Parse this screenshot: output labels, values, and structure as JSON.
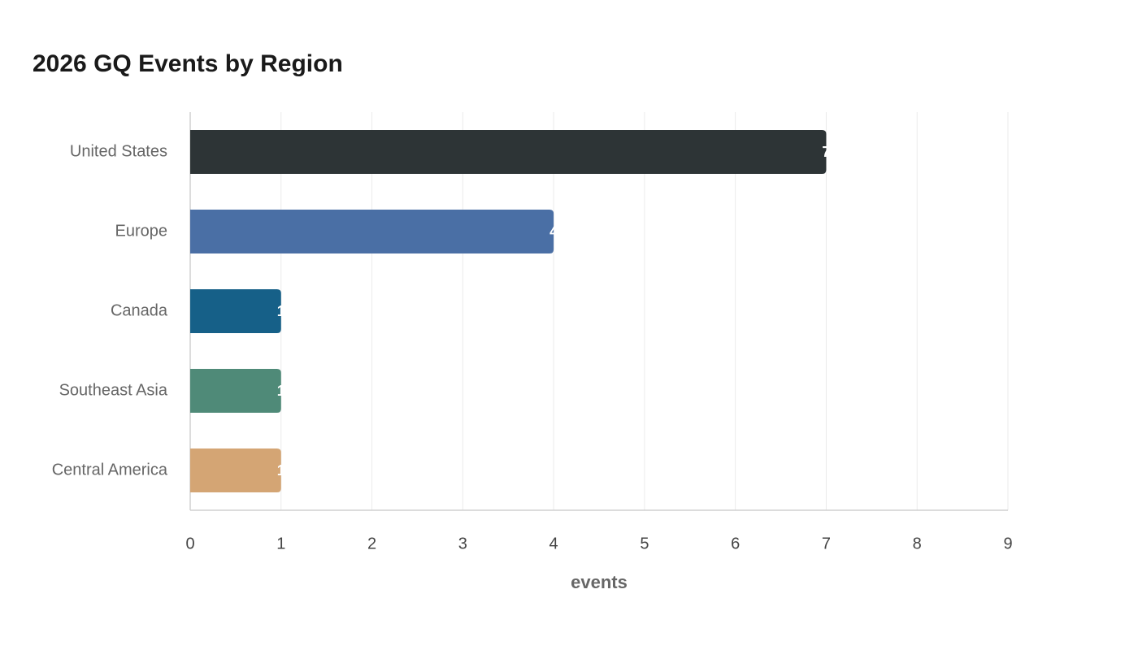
{
  "chart_data": {
    "type": "bar",
    "orientation": "horizontal",
    "title": "2026 GQ Events by Region",
    "categories": [
      "United States",
      "Europe",
      "Canada",
      "Southeast Asia",
      "Central America"
    ],
    "values": [
      7,
      4,
      1,
      1,
      1
    ],
    "colors": [
      "#2d3436",
      "#4a6fa5",
      "#166088",
      "#4f8a78",
      "#d4a574"
    ],
    "x_label": "events",
    "xlim": [
      0,
      9
    ],
    "xticks": [
      0,
      1,
      2,
      3,
      4,
      5,
      6,
      7,
      8,
      9
    ],
    "grid": true
  }
}
